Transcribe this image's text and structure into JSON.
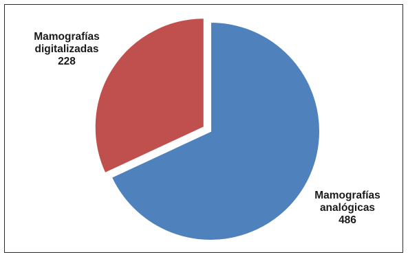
{
  "chart_data": {
    "type": "pie",
    "slices": [
      {
        "label_lines": [
          "Mamografías",
          "analógicas"
        ],
        "value": 486,
        "value_text": "486",
        "color": "#4f81bd",
        "exploded": false
      },
      {
        "label_lines": [
          "Mamografías",
          "digitalizadas"
        ],
        "value": 228,
        "value_text": "228",
        "color": "#c0504d",
        "exploded": true
      }
    ],
    "start_angle": "12 o'clock",
    "direction": "clockwise",
    "legend": "none",
    "data_labels": "outside, category name and value"
  }
}
